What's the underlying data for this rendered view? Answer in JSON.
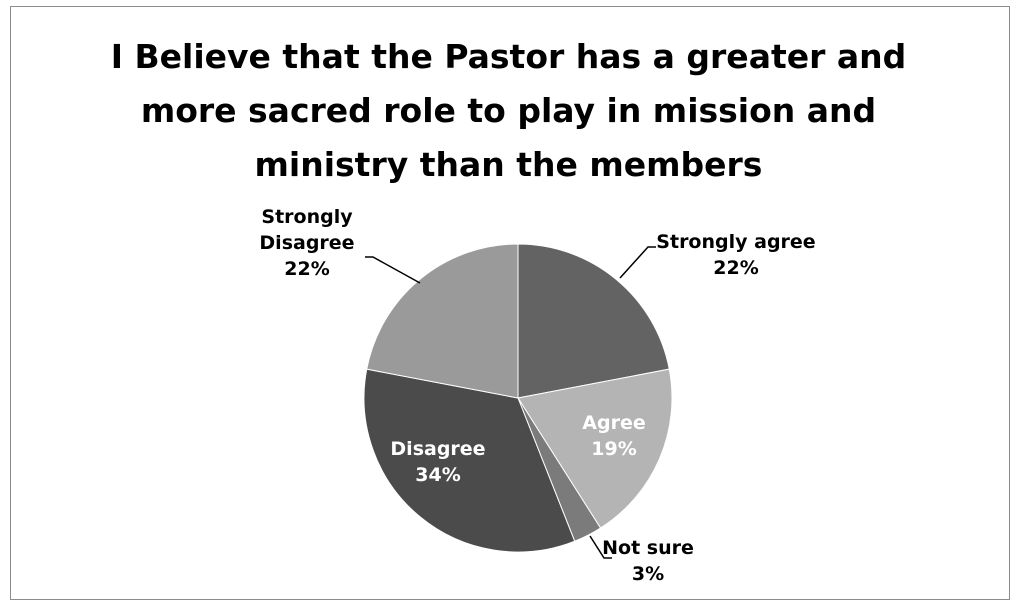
{
  "chart_data": {
    "type": "pie",
    "title_lines": [
      "I Believe that the Pastor has a greater and",
      "more sacred role to play in mission and",
      "ministry than the members"
    ],
    "slices": [
      {
        "label_lines": [
          "Strongly agree"
        ],
        "percent_label": "22%",
        "value": 22,
        "color": "#636363",
        "label_color": "#000000",
        "label_position": "outside-top-right"
      },
      {
        "label_lines": [
          "Agree"
        ],
        "percent_label": "19%",
        "value": 19,
        "color": "#b4b4b4",
        "label_color": "#ffffff",
        "label_position": "inside"
      },
      {
        "label_lines": [
          "Not sure"
        ],
        "percent_label": "3%",
        "value": 3,
        "color": "#7b7b7b",
        "label_color": "#000000",
        "label_position": "outside-bottom"
      },
      {
        "label_lines": [
          "Disagree"
        ],
        "percent_label": "34%",
        "value": 34,
        "color": "#4b4b4b",
        "label_color": "#ffffff",
        "label_position": "inside"
      },
      {
        "label_lines": [
          "Strongly",
          "Disagree"
        ],
        "percent_label": "22%",
        "value": 22,
        "color": "#9a9a9a",
        "label_color": "#000000",
        "label_position": "outside-top-left"
      }
    ],
    "legend": "none"
  }
}
